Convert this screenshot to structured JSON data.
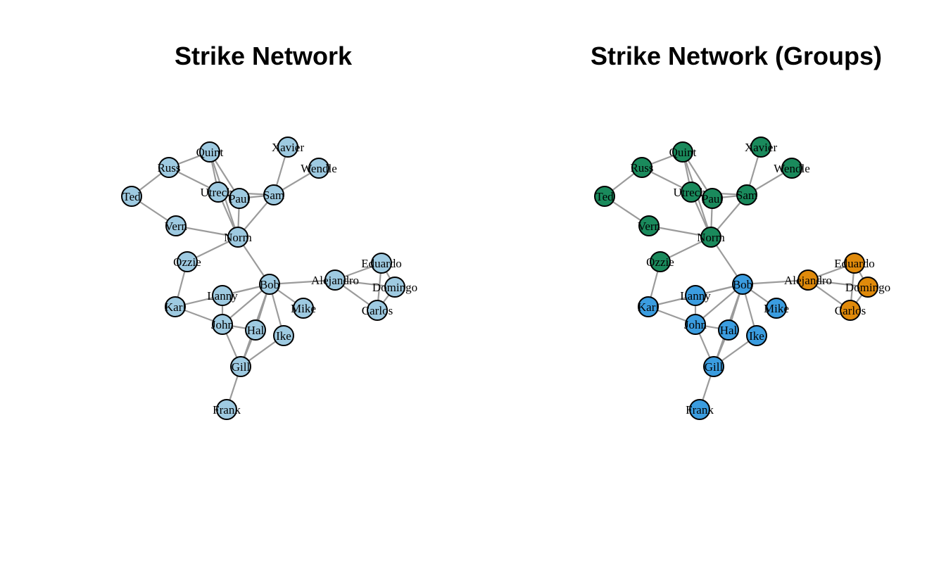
{
  "panels": [
    {
      "title": "Strike Network"
    },
    {
      "title": "Strike Network (Groups)"
    }
  ],
  "colors": {
    "default_node": "#9ecae1",
    "edge": "#9b9b9b",
    "group_green": "#1a8a5c",
    "group_blue": "#3b9de0",
    "group_orange": "#e08a0b"
  },
  "nodes": [
    {
      "name": "Quint",
      "group": "green"
    },
    {
      "name": "Xavier",
      "group": "green"
    },
    {
      "name": "Russ",
      "group": "green"
    },
    {
      "name": "Wendle",
      "group": "green"
    },
    {
      "name": "Ted",
      "group": "green"
    },
    {
      "name": "Utrecht",
      "group": "green"
    },
    {
      "name": "Paul",
      "group": "green"
    },
    {
      "name": "Sam",
      "group": "green"
    },
    {
      "name": "Vern",
      "group": "green"
    },
    {
      "name": "Norm",
      "group": "green"
    },
    {
      "name": "Ozzie",
      "group": "green"
    },
    {
      "name": "Eduardo",
      "group": "orange"
    },
    {
      "name": "Bob",
      "group": "blue"
    },
    {
      "name": "Alejandro",
      "group": "orange"
    },
    {
      "name": "Domingo",
      "group": "orange"
    },
    {
      "name": "Lanny",
      "group": "blue"
    },
    {
      "name": "Karl",
      "group": "blue"
    },
    {
      "name": "Mike",
      "group": "blue"
    },
    {
      "name": "Carlos",
      "group": "orange"
    },
    {
      "name": "John",
      "group": "blue"
    },
    {
      "name": "Hal",
      "group": "blue"
    },
    {
      "name": "Ike",
      "group": "blue"
    },
    {
      "name": "Gill",
      "group": "blue"
    },
    {
      "name": "Frank",
      "group": "blue"
    }
  ],
  "edges": [
    [
      "Quint",
      "Russ"
    ],
    [
      "Quint",
      "Utrecht"
    ],
    [
      "Quint",
      "Paul"
    ],
    [
      "Quint",
      "Norm"
    ],
    [
      "Russ",
      "Ted"
    ],
    [
      "Russ",
      "Utrecht"
    ],
    [
      "Ted",
      "Vern"
    ],
    [
      "Vern",
      "Norm"
    ],
    [
      "Utrecht",
      "Paul"
    ],
    [
      "Utrecht",
      "Norm"
    ],
    [
      "Utrecht",
      "Sam"
    ],
    [
      "Paul",
      "Sam"
    ],
    [
      "Paul",
      "Norm"
    ],
    [
      "Sam",
      "Xavier"
    ],
    [
      "Sam",
      "Wendle"
    ],
    [
      "Sam",
      "Norm"
    ],
    [
      "Norm",
      "Ozzie"
    ],
    [
      "Norm",
      "Bob"
    ],
    [
      "Ozzie",
      "Karl"
    ],
    [
      "Bob",
      "Alejandro"
    ],
    [
      "Bob",
      "Lanny"
    ],
    [
      "Bob",
      "Karl"
    ],
    [
      "Bob",
      "John"
    ],
    [
      "Bob",
      "Hal"
    ],
    [
      "Bob",
      "Ike"
    ],
    [
      "Bob",
      "Mike"
    ],
    [
      "Bob",
      "Gill"
    ],
    [
      "Alejandro",
      "Eduardo"
    ],
    [
      "Alejandro",
      "Domingo"
    ],
    [
      "Alejandro",
      "Carlos"
    ],
    [
      "Eduardo",
      "Domingo"
    ],
    [
      "Eduardo",
      "Carlos"
    ],
    [
      "Domingo",
      "Carlos"
    ],
    [
      "Karl",
      "John"
    ],
    [
      "Lanny",
      "John"
    ],
    [
      "John",
      "Hal"
    ],
    [
      "John",
      "Gill"
    ],
    [
      "Hal",
      "Gill"
    ],
    [
      "Ike",
      "Gill"
    ],
    [
      "Gill",
      "Frank"
    ]
  ]
}
